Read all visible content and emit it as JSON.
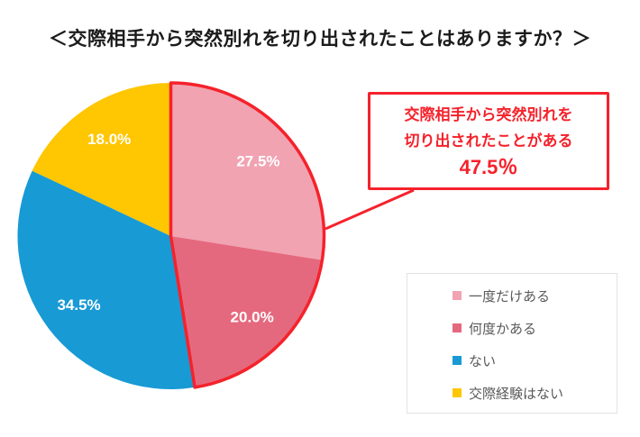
{
  "title": "＜交際相手から突然別れを切り出されたことはありますか？＞",
  "callout": {
    "line1": "交際相手から突然別れを",
    "line2": "切り出されたことがある",
    "value": "47.5％"
  },
  "legend": {
    "items": [
      {
        "label": "一度だけある",
        "color": "#f1a3b2"
      },
      {
        "label": "何度かある",
        "color": "#e5697e"
      },
      {
        "label": "ない",
        "color": "#189ad5"
      },
      {
        "label": "交際経験はない",
        "color": "#ffc602"
      }
    ]
  },
  "chart_data": {
    "type": "pie",
    "title": "＜交際相手から突然別れを切り出されたことはありますか？＞",
    "categories": [
      "一度だけある",
      "何度かある",
      "ない",
      "交際経験はない"
    ],
    "values": [
      27.5,
      20.0,
      34.5,
      18.0
    ],
    "labels": [
      "27.5%",
      "20.0%",
      "34.5%",
      "18.0%"
    ],
    "colors": [
      "#f1a3b2",
      "#e5697e",
      "#189ad5",
      "#ffc602"
    ],
    "start_angle_deg": 0,
    "direction": "clockwise",
    "legend_position": "bottom-right",
    "highlight": {
      "slice_indices": [
        0,
        1
      ],
      "combined_value": 47.5,
      "combined_label": "交際相手から突然別れを切り出されたことがある",
      "outline_color": "#f5222b"
    }
  },
  "colors": {
    "accent_red": "#f5222b",
    "legend_text": "#595959",
    "legend_border": "#e2e2e2",
    "title_text": "#1b1b1b",
    "pie_label_text": "#ffffff"
  }
}
